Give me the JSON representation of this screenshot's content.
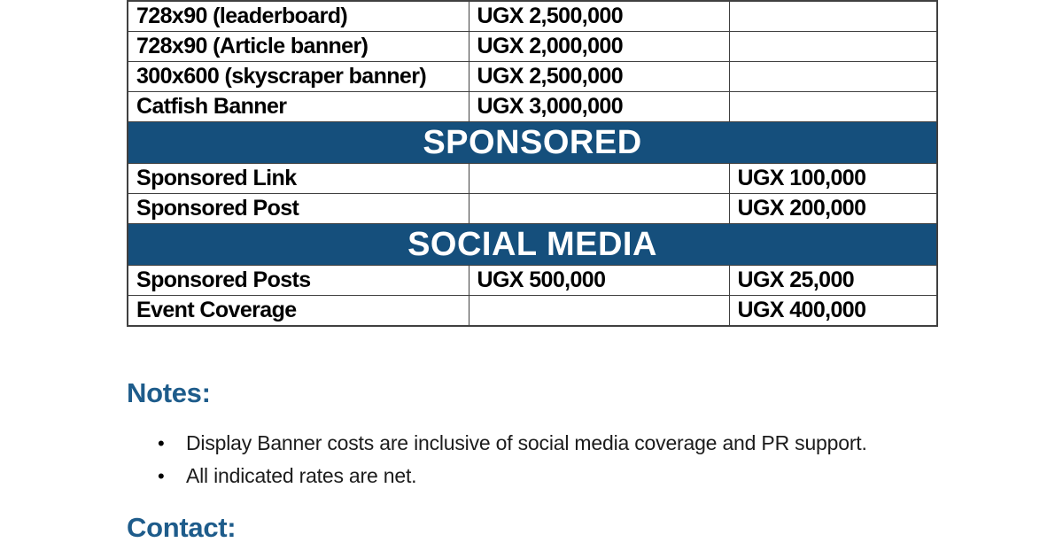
{
  "colors": {
    "section_header_bg": "#154F7C",
    "heading_text": "#1E5C8B",
    "table_border": "#404040",
    "body_text": "#1C1C1C"
  },
  "table": {
    "display_rows": [
      {
        "item": "728x90 (leaderboard)",
        "rate_main": "UGX 2,500,000",
        "rate_alt": ""
      },
      {
        "item": "728x90 (Article banner)",
        "rate_main": "UGX 2,000,000",
        "rate_alt": ""
      },
      {
        "item": "300x600 (skyscraper banner)",
        "rate_main": "UGX 2,500,000",
        "rate_alt": ""
      },
      {
        "item": "Catfish Banner",
        "rate_main": "UGX 3,000,000",
        "rate_alt": ""
      }
    ],
    "sponsored_header": "SPONSORED",
    "sponsored_rows": [
      {
        "item": "Sponsored Link",
        "rate_main": "",
        "rate_alt": "UGX 100,000"
      },
      {
        "item": "Sponsored Post",
        "rate_main": "",
        "rate_alt": "UGX 200,000"
      }
    ],
    "social_header": "SOCIAL MEDIA",
    "social_rows": [
      {
        "item": "Sponsored Posts",
        "rate_main": "UGX 500,000",
        "rate_alt": "UGX 25,000"
      },
      {
        "item": "Event Coverage",
        "rate_main": "",
        "rate_alt": "UGX 400,000"
      }
    ]
  },
  "notes": {
    "heading": "Notes:",
    "bullet_glyph": "•",
    "bullets": [
      "Display Banner costs are inclusive of social media coverage and PR support.",
      "All indicated rates are net."
    ]
  },
  "contact": {
    "heading": "Contact:"
  }
}
